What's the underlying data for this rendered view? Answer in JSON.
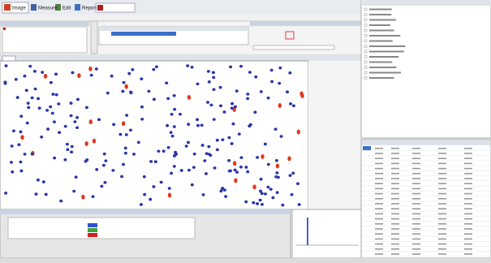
{
  "toolbar": {
    "tabs": [
      "Image",
      "Measure",
      "Edit",
      "Report"
    ]
  }
}
